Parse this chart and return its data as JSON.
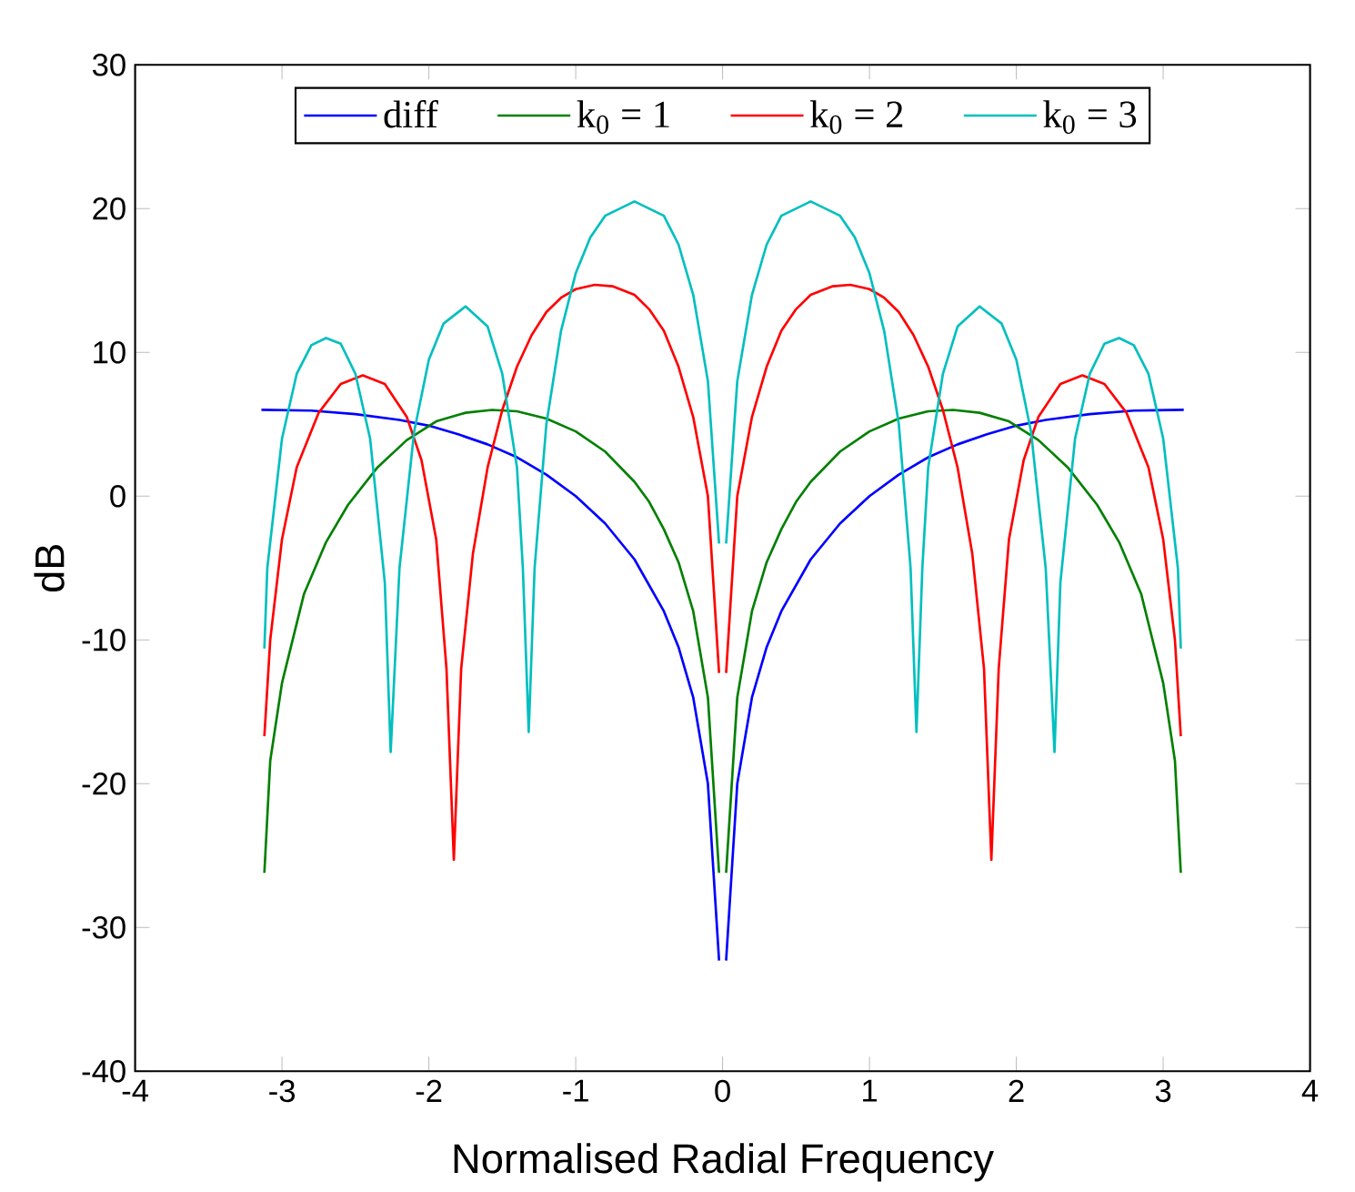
{
  "chart_data": {
    "type": "line",
    "xlabel": "Normalised Radial Frequency",
    "ylabel": "dB",
    "xlim": [
      -4,
      4
    ],
    "ylim": [
      -40,
      30
    ],
    "xticks": [
      -4,
      -3,
      -2,
      -1,
      0,
      1,
      2,
      3,
      4
    ],
    "yticks": [
      -40,
      -30,
      -20,
      -10,
      0,
      10,
      20,
      30
    ],
    "legend": "top",
    "grid": false,
    "marker": "none",
    "line_style": "solid",
    "series": [
      {
        "name": "diff",
        "color": "#0000ff",
        "x": [
          -3.14,
          -2.8,
          -2.5,
          -2.2,
          -2.0,
          -1.8,
          -1.6,
          -1.4,
          -1.2,
          -1.0,
          -0.8,
          -0.6,
          -0.4,
          -0.3,
          -0.2,
          -0.1,
          -0.024,
          0,
          0.024,
          0.1,
          0.2,
          0.3,
          0.4,
          0.6,
          0.8,
          1.0,
          1.2,
          1.4,
          1.6,
          1.8,
          2.0,
          2.2,
          2.5,
          2.8,
          3.14
        ],
        "values": [
          6.0,
          5.95,
          5.7,
          5.3,
          4.9,
          4.3,
          3.6,
          2.7,
          1.5,
          0,
          -1.9,
          -4.4,
          -8,
          -10.5,
          -14,
          -20,
          -32.3,
          null,
          -32.3,
          -20,
          -14,
          -10.5,
          -8,
          -4.4,
          -1.9,
          0,
          1.5,
          2.7,
          3.6,
          4.3,
          4.9,
          5.3,
          5.7,
          5.95,
          6.0
        ]
      },
      {
        "name": "k$_{0}$ = 1",
        "color": "#008000",
        "x": [
          -3.12,
          -3.08,
          -3.0,
          -2.85,
          -2.7,
          -2.55,
          -2.35,
          -2.15,
          -1.95,
          -1.75,
          -1.57,
          -1.4,
          -1.2,
          -1.0,
          -0.8,
          -0.6,
          -0.5,
          -0.4,
          -0.3,
          -0.2,
          -0.1,
          -0.024,
          0,
          0.024,
          0.1,
          0.2,
          0.3,
          0.4,
          0.5,
          0.6,
          0.8,
          1.0,
          1.2,
          1.4,
          1.57,
          1.75,
          1.95,
          2.15,
          2.35,
          2.55,
          2.7,
          2.85,
          3.0,
          3.08,
          3.12
        ],
        "values": [
          -26.2,
          -18.4,
          -13,
          -6.8,
          -3.2,
          -0.6,
          2.0,
          3.9,
          5.2,
          5.8,
          6.0,
          5.9,
          5.4,
          4.5,
          3.1,
          1.0,
          -0.4,
          -2.3,
          -4.6,
          -8,
          -14,
          -26.2,
          null,
          -26.2,
          -14,
          -8,
          -4.6,
          -2.3,
          -0.4,
          1.0,
          3.1,
          4.5,
          5.4,
          5.9,
          6.0,
          5.8,
          5.2,
          3.9,
          2.0,
          -0.6,
          -3.2,
          -6.8,
          -13,
          -18.4,
          -26.2
        ]
      },
      {
        "name": "k$_{0}$ = 2",
        "color": "#ff0000",
        "x": [
          -3.12,
          -3.08,
          -3.0,
          -2.9,
          -2.75,
          -2.6,
          -2.45,
          -2.3,
          -2.15,
          -2.05,
          -1.95,
          -1.88,
          -1.83,
          -1.78,
          -1.7,
          -1.6,
          -1.5,
          -1.4,
          -1.3,
          -1.2,
          -1.1,
          -1.0,
          -0.87,
          -0.75,
          -0.6,
          -0.5,
          -0.4,
          -0.3,
          -0.2,
          -0.1,
          -0.024,
          0,
          0.024,
          0.1,
          0.2,
          0.3,
          0.4,
          0.5,
          0.6,
          0.75,
          0.87,
          1.0,
          1.1,
          1.2,
          1.3,
          1.4,
          1.5,
          1.6,
          1.7,
          1.78,
          1.83,
          1.88,
          1.95,
          2.05,
          2.15,
          2.3,
          2.45,
          2.6,
          2.75,
          2.9,
          3.0,
          3.08,
          3.12
        ],
        "values": [
          -16.7,
          -10,
          -3,
          2,
          5.8,
          7.8,
          8.4,
          7.8,
          5.5,
          2.5,
          -3,
          -12,
          -25.3,
          -12,
          -4,
          2,
          6,
          9,
          11.2,
          12.8,
          13.8,
          14.4,
          14.7,
          14.6,
          14,
          13,
          11.5,
          9,
          5.5,
          0,
          -12.3,
          null,
          -12.3,
          0,
          5.5,
          9,
          11.5,
          13,
          14,
          14.6,
          14.7,
          14.4,
          13.8,
          12.8,
          11.2,
          9,
          6,
          2,
          -4,
          -12,
          -25.3,
          -12,
          -3,
          2.5,
          5.5,
          7.8,
          8.4,
          7.8,
          5.8,
          2,
          -3,
          -10,
          -16.7
        ]
      },
      {
        "name": "k$_{0}$ = 3",
        "color": "#00bfbf",
        "x": [
          -3.12,
          -3.1,
          -3.0,
          -2.9,
          -2.8,
          -2.7,
          -2.6,
          -2.5,
          -2.4,
          -2.3,
          -2.26,
          -2.2,
          -2.1,
          -2.0,
          -1.9,
          -1.75,
          -1.6,
          -1.5,
          -1.4,
          -1.36,
          -1.32,
          -1.28,
          -1.2,
          -1.1,
          -1.0,
          -0.9,
          -0.8,
          -0.6,
          -0.4,
          -0.3,
          -0.2,
          -0.1,
          -0.024,
          0,
          0.024,
          0.1,
          0.2,
          0.3,
          0.4,
          0.6,
          0.8,
          0.9,
          1.0,
          1.1,
          1.2,
          1.28,
          1.32,
          1.36,
          1.4,
          1.5,
          1.6,
          1.75,
          1.9,
          2.0,
          2.1,
          2.2,
          2.26,
          2.3,
          2.4,
          2.5,
          2.6,
          2.7,
          2.8,
          2.9,
          3.0,
          3.1,
          3.12
        ],
        "values": [
          -10.6,
          -5,
          4,
          8.5,
          10.5,
          11,
          10.6,
          8.5,
          4,
          -6,
          -17.8,
          -5,
          4.5,
          9.5,
          12,
          13.2,
          11.8,
          8.5,
          2,
          -5,
          -16.4,
          -5,
          5,
          11.5,
          15.5,
          18,
          19.5,
          20.5,
          19.5,
          17.5,
          14,
          8,
          -3.3,
          null,
          -3.3,
          8,
          14,
          17.5,
          19.5,
          20.5,
          19.5,
          18,
          15.5,
          11.5,
          5,
          -5,
          -16.4,
          -5,
          2,
          8.5,
          11.8,
          13.2,
          12,
          9.5,
          4.5,
          -5,
          -17.8,
          -6,
          4,
          8.5,
          10.6,
          11,
          10.5,
          8.5,
          4,
          -5,
          -10.6
        ]
      }
    ]
  }
}
